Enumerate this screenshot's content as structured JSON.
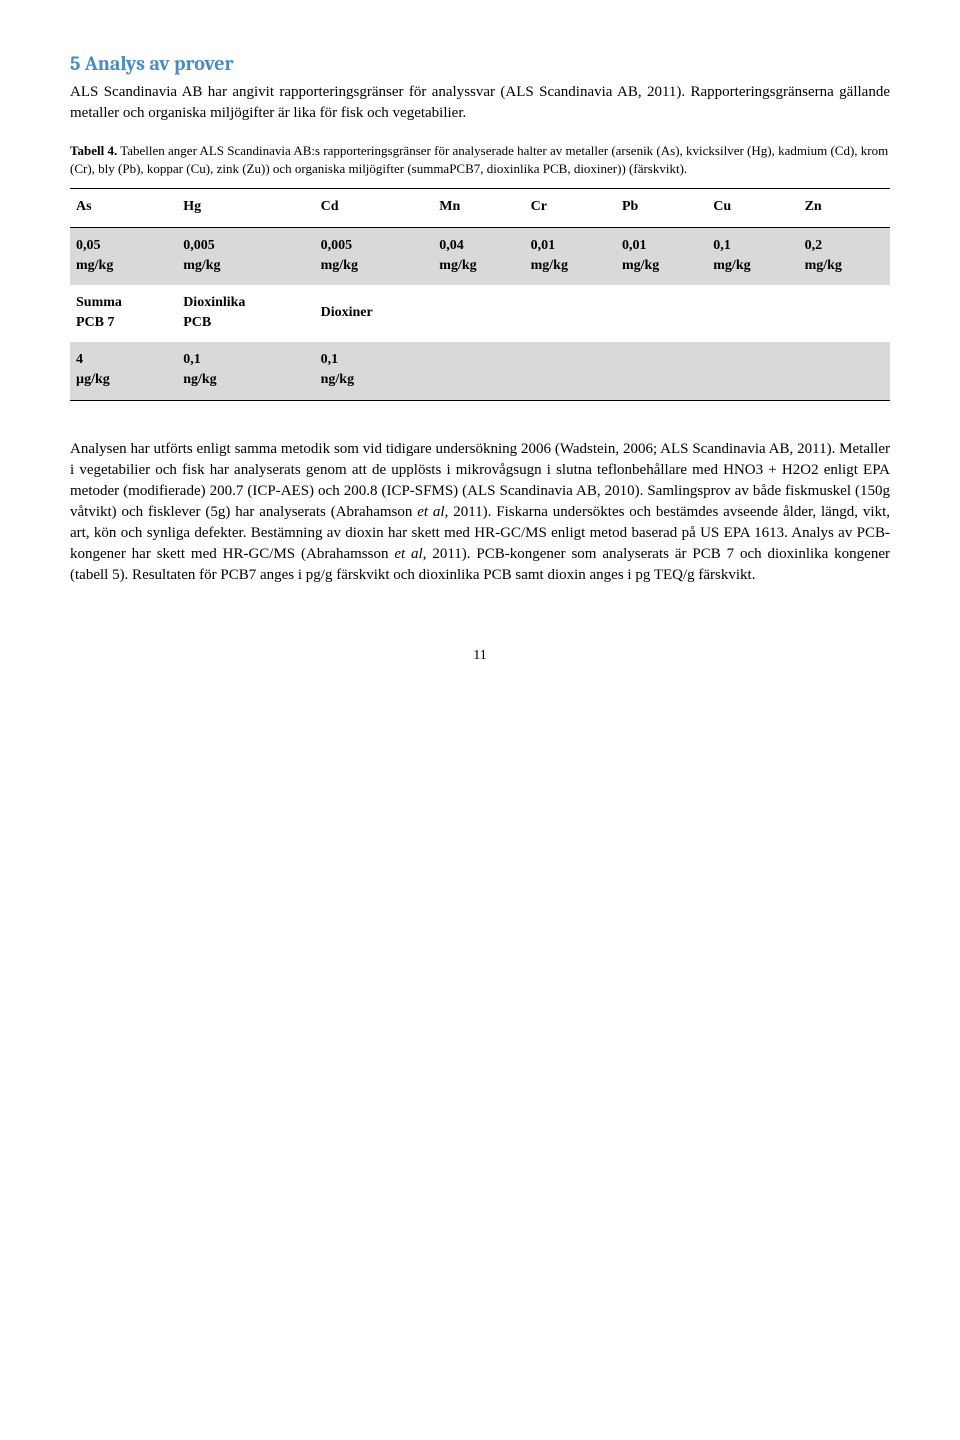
{
  "heading": "5 Analys av prover",
  "intro_text": "ALS Scandinavia AB har angivit rapporteringsgränser för analyssvar (ALS Scandinavia AB, 2011). Rapporteringsgränserna gällande metaller och organiska miljögifter är lika för fisk och vegetabilier.",
  "caption_label": "Tabell 4.",
  "caption_text": " Tabellen anger ALS Scandinavia AB:s rapporteringsgränser för analyserade halter av metaller (arsenik (As), kvicksilver (Hg), kadmium (Cd), krom (Cr), bly (Pb), koppar (Cu), zink (Zu)) och organiska miljögifter (summaPCB7, dioxinlika PCB, dioxiner)) (färskvikt).",
  "table1": {
    "headers": [
      "As",
      "Hg",
      "Cd",
      "Mn",
      "Cr",
      "Pb",
      "Cu",
      "Zn"
    ],
    "row": [
      {
        "v": "0,05",
        "u": "mg/kg"
      },
      {
        "v": "0,005",
        "u": "mg/kg"
      },
      {
        "v": "0,005",
        "u": "mg/kg"
      },
      {
        "v": "0,04",
        "u": "mg/kg"
      },
      {
        "v": "0,01",
        "u": "mg/kg"
      },
      {
        "v": "0,01",
        "u": "mg/kg"
      },
      {
        "v": "0,1",
        "u": "mg/kg"
      },
      {
        "v": "0,2",
        "u": "mg/kg"
      }
    ]
  },
  "table2": {
    "headers": [
      {
        "l1": "Summa",
        "l2": "PCB 7"
      },
      {
        "l1": "Dioxinlika",
        "l2": "PCB"
      },
      {
        "l1": "Dioxiner",
        "l2": ""
      }
    ],
    "row": [
      {
        "v": "4",
        "u": "µg/kg"
      },
      {
        "v": "0,1",
        "u": "ng/kg"
      },
      {
        "v": "0,1",
        "u": "ng/kg"
      }
    ]
  },
  "body_para": "Analysen har utförts enligt samma metodik som vid tidigare undersökning 2006 (Wadstein, 2006; ALS Scandinavia AB, 2011). Metaller i vegetabilier och fisk har analyserats genom att de upplösts i mikrovågsugn i slutna teflonbehållare med HNO3 + H2O2 enligt EPA metoder (modifierade) 200.7 (ICP-AES) och 200.8 (ICP-SFMS) (ALS Scandinavia AB, 2010). Samlingsprov av både fiskmuskel (150g våtvikt) och fisklever (5g) har analyserats (Abrahamson et al, 2011). Fiskarna undersöktes och bestämdes avseende ålder, längd, vikt, art, kön och synliga defekter. Bestämning av dioxin har skett med HR-GC/MS enligt metod baserad på US EPA 1613. Analys av PCB-kongener har skett med HR-GC/MS (Abrahamsson et al, 2011). PCB-kongener som analyserats är PCB 7 och dioxinlika kongener (tabell 5). Resultaten för PCB7 anges i pg/g färskvikt och dioxinlika PCB samt dioxin anges i pg TEQ/g färskvikt.",
  "page_number": "11",
  "colors": {
    "heading": "#4a8bc3",
    "shaded_row": "#d9d9d9",
    "text": "#000000",
    "background": "#ffffff"
  }
}
